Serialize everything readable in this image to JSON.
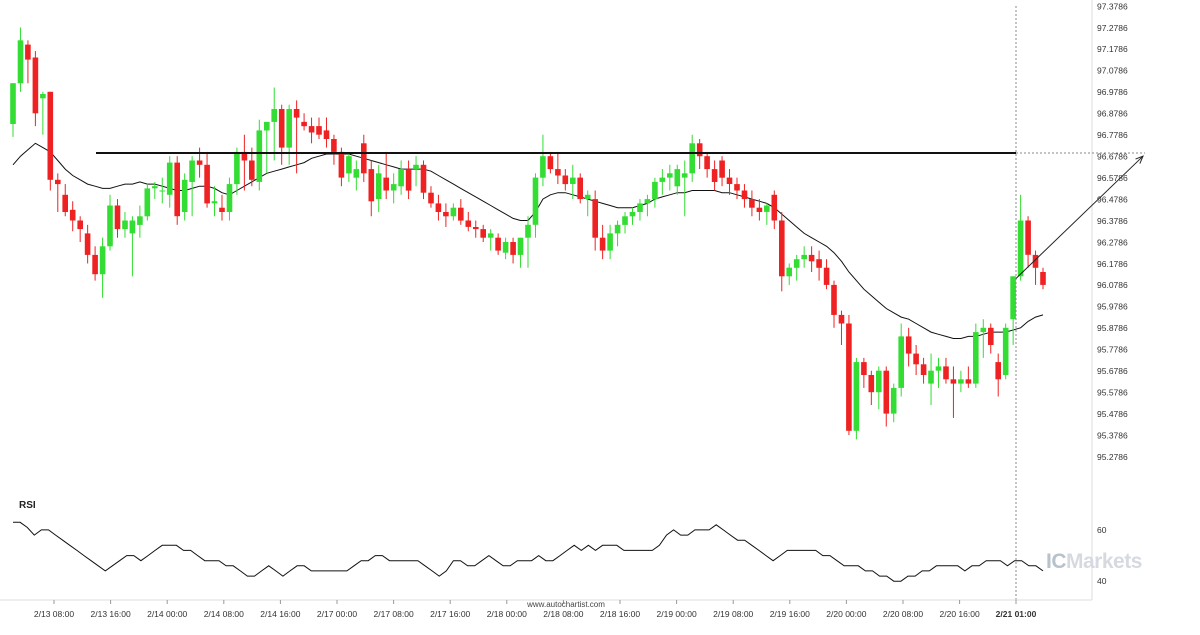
{
  "colors": {
    "bull": "#33dd33",
    "bear": "#ee2222",
    "hollow": "#ee2222",
    "ma": "#111111",
    "resistance": "#111111",
    "projection": "#222222",
    "rsi": "#111111",
    "grid": "#e6e6e6",
    "text": "#333333"
  },
  "watermark": {
    "prefix": "IC",
    "suffix": "Markets"
  },
  "footer": {
    "site": "www.autochartist.com"
  },
  "rsi_panel": {
    "label": "RSI",
    "levels": [
      "60",
      "40"
    ]
  },
  "chart_data": {
    "type": "candlestick",
    "grid": false,
    "y_axis_side": "right",
    "ylim": [
      95.18,
      97.38
    ],
    "y_ticks": [
      "97.3786",
      "97.2786",
      "97.1786",
      "97.0786",
      "96.9786",
      "96.8786",
      "96.7786",
      "96.6786",
      "96.5786",
      "96.4786",
      "96.3786",
      "96.2786",
      "96.1786",
      "96.0786",
      "95.9786",
      "95.8786",
      "95.7786",
      "95.6786",
      "95.5786",
      "95.4786",
      "95.3786",
      "95.2786"
    ],
    "x_labels": [
      "2/13 08:00",
      "2/13 16:00",
      "2/14 00:00",
      "2/14 08:00",
      "2/14 16:00",
      "2/17 00:00",
      "2/17 08:00",
      "2/17 16:00",
      "2/18 00:00",
      "2/18 08:00",
      "2/18 16:00",
      "2/19 00:00",
      "2/19 08:00",
      "2/19 16:00",
      "2/20 00:00",
      "2/20 08:00",
      "2/20 16:00",
      "2/21 01:00"
    ],
    "highlight_x_label": "2/21 01:00",
    "resistance_level": 96.695,
    "projection": {
      "from": 96.11,
      "to": 96.68
    },
    "candles": [
      [
        96.83,
        97.02,
        96.77,
        97.02
      ],
      [
        97.02,
        97.28,
        96.98,
        97.22
      ],
      [
        97.2,
        97.22,
        97.02,
        97.13
      ],
      [
        97.14,
        97.17,
        96.82,
        96.88
      ],
      [
        96.95,
        96.98,
        96.78,
        96.97
      ],
      [
        96.98,
        96.98,
        96.52,
        96.57
      ],
      [
        96.57,
        96.6,
        96.42,
        96.55
      ],
      [
        96.5,
        96.55,
        96.4,
        96.42
      ],
      [
        96.43,
        96.47,
        96.33,
        96.38
      ],
      [
        96.38,
        96.4,
        96.28,
        96.34
      ],
      [
        96.32,
        96.36,
        96.18,
        96.22
      ],
      [
        96.22,
        96.26,
        96.1,
        96.13
      ],
      [
        96.13,
        96.3,
        96.02,
        96.26
      ],
      [
        96.26,
        96.5,
        96.24,
        96.45
      ],
      [
        96.45,
        96.48,
        96.3,
        96.34
      ],
      [
        96.34,
        96.42,
        96.3,
        96.38
      ],
      [
        96.32,
        96.4,
        96.12,
        96.38
      ],
      [
        96.36,
        96.45,
        96.3,
        96.4
      ],
      [
        96.4,
        96.55,
        96.38,
        96.53
      ],
      [
        96.53,
        96.56,
        96.48,
        96.54
      ],
      [
        96.52,
        96.58,
        96.46,
        96.52
      ],
      [
        96.5,
        96.68,
        96.44,
        96.65
      ],
      [
        96.65,
        96.68,
        96.36,
        96.4
      ],
      [
        96.42,
        96.6,
        96.38,
        96.57
      ],
      [
        96.56,
        96.68,
        96.4,
        96.66
      ],
      [
        96.66,
        96.72,
        96.58,
        96.64
      ],
      [
        96.64,
        96.7,
        96.44,
        96.46
      ],
      [
        96.46,
        96.54,
        96.4,
        96.47
      ],
      [
        96.44,
        96.5,
        96.38,
        96.42
      ],
      [
        96.42,
        96.58,
        96.38,
        96.55
      ],
      [
        96.55,
        96.72,
        96.5,
        96.7
      ],
      [
        96.7,
        96.78,
        96.52,
        96.66
      ],
      [
        96.66,
        96.72,
        96.54,
        96.57
      ],
      [
        96.56,
        96.85,
        96.52,
        96.8
      ],
      [
        96.8,
        96.84,
        96.6,
        96.84
      ],
      [
        96.84,
        97.0,
        96.66,
        96.9
      ],
      [
        96.9,
        96.92,
        96.64,
        96.72
      ],
      [
        96.72,
        96.92,
        96.64,
        96.9
      ],
      [
        96.9,
        96.94,
        96.6,
        96.86
      ],
      [
        96.84,
        96.88,
        96.8,
        96.82
      ],
      [
        96.82,
        96.86,
        96.74,
        96.79
      ],
      [
        96.82,
        96.86,
        96.76,
        96.78
      ],
      [
        96.8,
        96.86,
        96.72,
        96.76
      ],
      [
        96.76,
        96.78,
        96.64,
        96.7
      ],
      [
        96.7,
        96.72,
        96.54,
        96.58
      ],
      [
        96.6,
        96.7,
        96.56,
        96.68
      ],
      [
        96.58,
        96.66,
        96.52,
        96.62
      ],
      [
        96.74,
        96.78,
        96.56,
        96.6
      ],
      [
        96.62,
        96.66,
        96.4,
        96.47
      ],
      [
        96.48,
        96.64,
        96.42,
        96.6
      ],
      [
        96.58,
        96.7,
        96.48,
        96.52
      ],
      [
        96.52,
        96.6,
        96.46,
        96.55
      ],
      [
        96.54,
        96.66,
        96.5,
        96.62
      ],
      [
        96.62,
        96.66,
        96.48,
        96.52
      ],
      [
        96.62,
        96.68,
        96.54,
        96.64
      ],
      [
        96.64,
        96.66,
        96.48,
        96.51
      ],
      [
        96.51,
        96.54,
        96.44,
        96.46
      ],
      [
        96.46,
        96.5,
        96.38,
        96.42
      ],
      [
        96.42,
        96.46,
        96.35,
        96.4
      ],
      [
        96.4,
        96.46,
        96.38,
        96.44
      ],
      [
        96.44,
        96.48,
        96.36,
        96.38
      ],
      [
        96.38,
        96.42,
        96.33,
        96.35
      ],
      [
        96.35,
        96.38,
        96.3,
        96.34
      ],
      [
        96.34,
        96.36,
        96.28,
        96.3
      ],
      [
        96.3,
        96.34,
        96.24,
        96.32
      ],
      [
        96.3,
        96.32,
        96.22,
        96.24
      ],
      [
        96.23,
        96.3,
        96.2,
        96.28
      ],
      [
        96.28,
        96.3,
        96.18,
        96.22
      ],
      [
        96.22,
        96.3,
        96.16,
        96.3
      ],
      [
        96.3,
        96.4,
        96.16,
        96.36
      ],
      [
        96.36,
        96.6,
        96.3,
        96.58
      ],
      [
        96.58,
        96.78,
        96.54,
        96.68
      ],
      [
        96.68,
        96.7,
        96.6,
        96.62
      ],
      [
        96.62,
        96.7,
        96.55,
        96.59
      ],
      [
        96.59,
        96.62,
        96.52,
        96.55
      ],
      [
        96.55,
        96.64,
        96.48,
        96.58
      ],
      [
        96.58,
        96.6,
        96.46,
        96.48
      ],
      [
        96.48,
        96.52,
        96.4,
        96.5
      ],
      [
        96.48,
        96.52,
        96.24,
        96.3
      ],
      [
        96.3,
        96.36,
        96.2,
        96.24
      ],
      [
        96.24,
        96.36,
        96.2,
        96.32
      ],
      [
        96.32,
        96.38,
        96.26,
        96.36
      ],
      [
        96.36,
        96.42,
        96.32,
        96.4
      ],
      [
        96.4,
        96.44,
        96.36,
        96.42
      ],
      [
        96.42,
        96.48,
        96.38,
        96.46
      ],
      [
        96.46,
        96.5,
        96.4,
        96.48
      ],
      [
        96.48,
        96.58,
        96.44,
        96.56
      ],
      [
        96.56,
        96.62,
        96.5,
        96.58
      ],
      [
        96.58,
        96.64,
        96.52,
        96.6
      ],
      [
        96.54,
        96.64,
        96.5,
        96.62
      ],
      [
        96.58,
        96.66,
        96.4,
        96.6
      ],
      [
        96.6,
        96.78,
        96.56,
        96.74
      ],
      [
        96.74,
        96.76,
        96.62,
        96.68
      ],
      [
        96.68,
        96.7,
        96.58,
        96.62
      ],
      [
        96.62,
        96.66,
        96.52,
        96.56
      ],
      [
        96.66,
        96.68,
        96.54,
        96.58
      ],
      [
        96.58,
        96.62,
        96.5,
        96.55
      ],
      [
        96.55,
        96.58,
        96.48,
        96.52
      ],
      [
        96.52,
        96.55,
        96.44,
        96.48
      ],
      [
        96.48,
        96.52,
        96.4,
        96.44
      ],
      [
        96.44,
        96.48,
        96.38,
        96.42
      ],
      [
        96.42,
        96.46,
        96.36,
        96.45
      ],
      [
        96.5,
        96.52,
        96.34,
        96.38
      ],
      [
        96.38,
        96.42,
        96.05,
        96.12
      ],
      [
        96.12,
        96.18,
        96.08,
        96.16
      ],
      [
        96.16,
        96.22,
        96.1,
        96.2
      ],
      [
        96.2,
        96.26,
        96.16,
        96.22
      ],
      [
        96.22,
        96.26,
        96.14,
        96.19
      ],
      [
        96.2,
        96.24,
        96.1,
        96.16
      ],
      [
        96.16,
        96.2,
        96.06,
        96.08
      ],
      [
        96.08,
        96.1,
        95.88,
        95.94
      ],
      [
        95.94,
        95.96,
        95.8,
        95.9
      ],
      [
        95.9,
        95.94,
        95.38,
        95.4
      ],
      [
        95.4,
        95.74,
        95.36,
        95.72
      ],
      [
        95.72,
        95.74,
        95.6,
        95.66
      ],
      [
        95.66,
        95.68,
        95.52,
        95.58
      ],
      [
        95.58,
        95.7,
        95.5,
        95.68
      ],
      [
        95.68,
        95.7,
        95.42,
        95.48
      ],
      [
        95.48,
        95.62,
        95.44,
        95.6
      ],
      [
        95.6,
        95.9,
        95.56,
        95.84
      ],
      [
        95.84,
        95.88,
        95.7,
        95.76
      ],
      [
        95.76,
        95.8,
        95.66,
        95.71
      ],
      [
        95.71,
        95.74,
        95.62,
        95.66
      ],
      [
        95.62,
        95.76,
        95.52,
        95.68
      ],
      [
        95.68,
        95.74,
        95.6,
        95.7
      ],
      [
        95.7,
        95.74,
        95.62,
        95.64
      ],
      [
        95.64,
        95.7,
        95.46,
        95.62
      ],
      [
        95.62,
        95.68,
        95.58,
        95.64
      ],
      [
        95.64,
        95.7,
        95.6,
        95.62
      ],
      [
        95.62,
        95.9,
        95.6,
        95.86
      ],
      [
        95.86,
        95.92,
        95.74,
        95.88
      ],
      [
        95.88,
        95.9,
        95.76,
        95.8
      ],
      [
        95.72,
        95.76,
        95.56,
        95.64
      ],
      [
        95.66,
        95.9,
        95.64,
        95.88
      ],
      [
        95.92,
        96.12,
        95.8,
        96.12
      ],
      [
        96.12,
        96.5,
        96.1,
        96.38
      ],
      [
        96.38,
        96.4,
        96.16,
        96.22
      ],
      [
        96.22,
        96.24,
        96.08,
        96.16
      ],
      [
        96.14,
        96.16,
        96.06,
        96.08
      ]
    ],
    "hollow_from_index": 141,
    "moving_average": [
      96.64,
      96.68,
      96.71,
      96.74,
      96.72,
      96.7,
      96.66,
      96.62,
      96.59,
      96.57,
      96.55,
      96.54,
      96.53,
      96.53,
      96.54,
      96.55,
      96.55,
      96.56,
      96.55,
      96.55,
      96.54,
      96.53,
      96.52,
      96.52,
      96.53,
      96.54,
      96.54,
      96.53,
      96.51,
      96.5,
      96.52,
      96.54,
      96.56,
      96.58,
      96.6,
      96.61,
      96.62,
      96.63,
      96.64,
      96.65,
      96.67,
      96.68,
      96.69,
      96.69,
      96.69,
      96.69,
      96.68,
      96.67,
      96.66,
      96.65,
      96.64,
      96.63,
      96.62,
      96.62,
      96.62,
      96.62,
      96.61,
      96.59,
      96.57,
      96.55,
      96.53,
      96.51,
      96.49,
      96.47,
      96.45,
      96.43,
      96.41,
      96.39,
      96.38,
      96.38,
      96.42,
      96.48,
      96.5,
      96.51,
      96.51,
      96.5,
      96.49,
      96.48,
      96.47,
      96.46,
      96.45,
      96.44,
      96.44,
      96.44,
      96.45,
      96.46,
      96.48,
      96.49,
      96.5,
      96.51,
      96.51,
      96.52,
      96.52,
      96.52,
      96.52,
      96.51,
      96.51,
      96.5,
      96.49,
      96.48,
      96.47,
      96.46,
      96.44,
      96.41,
      96.38,
      96.35,
      96.32,
      96.3,
      96.28,
      96.26,
      96.23,
      96.19,
      96.14,
      96.1,
      96.06,
      96.03,
      96.0,
      95.97,
      95.95,
      95.93,
      95.92,
      95.9,
      95.88,
      95.86,
      95.85,
      95.84,
      95.83,
      95.83,
      95.84,
      95.84,
      95.85,
      95.86,
      95.86,
      95.86,
      95.87,
      95.88,
      95.91,
      95.93,
      95.94
    ],
    "rsi": [
      63,
      63,
      61,
      58,
      60,
      60,
      58,
      56,
      54,
      52,
      50,
      48,
      46,
      44,
      46,
      48,
      50,
      50,
      48,
      50,
      52,
      54,
      54,
      54,
      52,
      52,
      50,
      48,
      48,
      48,
      46,
      46,
      44,
      42,
      42,
      44,
      46,
      44,
      42,
      44,
      46,
      46,
      44,
      44,
      44,
      44,
      44,
      44,
      46,
      48,
      48,
      50,
      50,
      48,
      48,
      48,
      48,
      48,
      46,
      44,
      42,
      44,
      48,
      48,
      46,
      46,
      48,
      50,
      48,
      46,
      46,
      48,
      48,
      48,
      50,
      48,
      48,
      50,
      52,
      54,
      52,
      54,
      52,
      54,
      54,
      54,
      52,
      52,
      52,
      52,
      52,
      54,
      58,
      60,
      58,
      58,
      60,
      60,
      60,
      62,
      60,
      58,
      56,
      56,
      54,
      52,
      50,
      48,
      50,
      52,
      52,
      52,
      52,
      52,
      50,
      50,
      48,
      46,
      46,
      46,
      44,
      44,
      42,
      42,
      40,
      40,
      42,
      42,
      44,
      44,
      46,
      46,
      46,
      46,
      44,
      46,
      46,
      48,
      48,
      48,
      46,
      48,
      48,
      46,
      46,
      44
    ],
    "rsi_ylim": [
      35,
      67
    ]
  }
}
